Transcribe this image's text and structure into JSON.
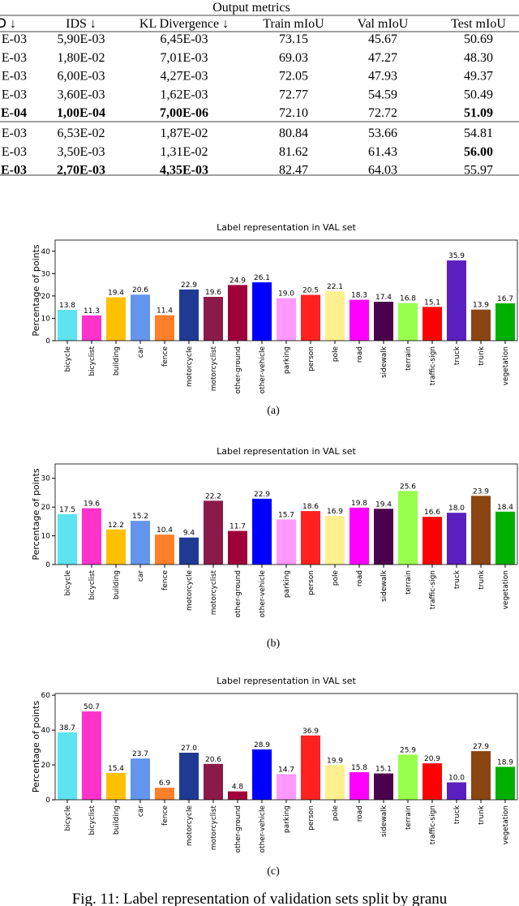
{
  "table": {
    "group_header": "Output metrics",
    "header": [
      "Ↄ ↓",
      "IDS ↓",
      "KL Divergence ↓",
      "Train mIoU",
      "Val mIoU",
      "Test mIoU"
    ],
    "rows": [
      [
        "E-03",
        "5,90E-03",
        "6,45E-03",
        "73.15",
        "45.67",
        "50.69"
      ],
      [
        "E-03",
        "1,80E-02",
        "7,01E-03",
        "69.03",
        "47.27",
        "48.30"
      ],
      [
        "E-03",
        "6,00E-03",
        "4,27E-03",
        "72.05",
        "47.93",
        "49.37"
      ],
      [
        "E-03",
        "3,60E-03",
        "1,62E-03",
        "72.77",
        "54.59",
        "50.49"
      ],
      [
        "E-04",
        "1,00E-04",
        "7,00E-06",
        "72.10",
        "72.72",
        "51.09"
      ],
      [
        "E-03",
        "6,53E-02",
        "1,87E-02",
        "80.84",
        "53.66",
        "54.81"
      ],
      [
        "E-03",
        "3,50E-03",
        "1,31E-02",
        "81.62",
        "61.43",
        "56.00"
      ],
      [
        "E-03",
        "2,70E-03",
        "4,35E-03",
        "82.47",
        "64.03",
        "55.97"
      ]
    ]
  },
  "chart_data": [
    {
      "type": "bar",
      "title": "Label representation in VAL set",
      "y_label": "Percentage of points",
      "categories": [
        "bicycle",
        "bicyclist",
        "building",
        "car",
        "fence",
        "motorcycle",
        "motorcyclist",
        "other-ground",
        "other-vehicle",
        "parking",
        "person",
        "pole",
        "road",
        "sidewalk",
        "terrain",
        "traffic-sign",
        "truck",
        "trunk",
        "vegetation"
      ],
      "values": [
        13.8,
        11.3,
        19.4,
        20.6,
        11.4,
        22.9,
        19.6,
        24.9,
        26.1,
        19.0,
        20.5,
        22.1,
        18.3,
        17.4,
        16.8,
        15.1,
        35.9,
        13.9,
        16.7
      ],
      "value_labels": [
        "13.8",
        "11.3",
        "19.4",
        "20.6",
        "11.4",
        "22.9",
        "19.6",
        "24.9",
        "26.1",
        "19.0",
        "20.5",
        "22.1",
        "18.3",
        "17.4",
        "16.8",
        "15.1",
        "35.9",
        "13.9",
        "16.7"
      ],
      "colors": [
        "#5ee3f0",
        "#ff33cc",
        "#ffc000",
        "#6495ed",
        "#ff7f2a",
        "#1f3a93",
        "#8b1a4a",
        "#a0003a",
        "#0000ff",
        "#ff99ff",
        "#ff2020",
        "#fff08f",
        "#ff00ff",
        "#4b004b",
        "#99ff4d",
        "#ff0000",
        "#5a1fbf",
        "#8b4513",
        "#00b000"
      ],
      "ylim": [
        0,
        45
      ],
      "yticks": [
        0,
        10,
        20,
        30,
        40
      ]
    },
    {
      "type": "bar",
      "title": "Label representation in VAL set",
      "y_label": "Percentage of points",
      "categories": [
        "bicycle",
        "bicyclist",
        "building",
        "car",
        "fence",
        "motorcycle",
        "motorcyclist",
        "other-ground",
        "other-vehicle",
        "parking",
        "person",
        "pole",
        "road",
        "sidewalk",
        "terrain",
        "traffic-sign",
        "truck",
        "trunk",
        "vegetation"
      ],
      "values": [
        17.5,
        19.6,
        12.2,
        15.2,
        10.4,
        9.4,
        22.2,
        11.7,
        22.9,
        15.7,
        18.6,
        16.9,
        19.8,
        19.4,
        25.6,
        16.6,
        18.0,
        23.9,
        18.4
      ],
      "value_labels": [
        "17.5",
        "19.6",
        "12.2",
        "15.2",
        "10.4",
        "9.4",
        "22.2",
        "11.7",
        "22.9",
        "15.7",
        "18.6",
        "16.9",
        "19.8",
        "19.4",
        "25.6",
        "16.6",
        "18.0",
        "23.9",
        "18.4"
      ],
      "colors": [
        "#5ee3f0",
        "#ff33cc",
        "#ffc000",
        "#6495ed",
        "#ff7f2a",
        "#1f3a93",
        "#8b1a4a",
        "#a0003a",
        "#0000ff",
        "#ff99ff",
        "#ff2020",
        "#fff08f",
        "#ff00ff",
        "#4b004b",
        "#99ff4d",
        "#ff0000",
        "#5a1fbf",
        "#8b4513",
        "#00b000"
      ],
      "ylim": [
        0,
        35
      ],
      "yticks": [
        0,
        10,
        20,
        30
      ]
    },
    {
      "type": "bar",
      "title": "Label representation in VAL set",
      "y_label": "Percentage of points",
      "categories": [
        "bicycle",
        "bicyclist",
        "building",
        "car",
        "fence",
        "motorcycle",
        "motorcyclist",
        "other-ground",
        "other-vehicle",
        "parking",
        "person",
        "pole",
        "road",
        "sidewalk",
        "terrain",
        "traffic-sign",
        "truck",
        "trunk",
        "vegetation"
      ],
      "values": [
        38.7,
        50.7,
        15.4,
        23.7,
        6.9,
        27.0,
        20.6,
        4.8,
        28.9,
        14.7,
        36.9,
        19.9,
        15.8,
        15.1,
        25.9,
        20.9,
        10.0,
        27.9,
        18.9
      ],
      "value_labels": [
        "38.7",
        "50.7",
        "15.4",
        "23.7",
        "6.9",
        "27.0",
        "20.6",
        "4.8",
        "28.9",
        "14.7",
        "36.9",
        "19.9",
        "15.8",
        "15.1",
        "25.9",
        "20.9",
        "10.0",
        "27.9",
        "18.9"
      ],
      "colors": [
        "#5ee3f0",
        "#ff33cc",
        "#ffc000",
        "#6495ed",
        "#ff7f2a",
        "#1f3a93",
        "#8b1a4a",
        "#a0003a",
        "#0000ff",
        "#ff99ff",
        "#ff2020",
        "#fff08f",
        "#ff00ff",
        "#4b004b",
        "#99ff4d",
        "#ff0000",
        "#5a1fbf",
        "#8b4513",
        "#00b000"
      ],
      "ylim": [
        0,
        61
      ],
      "yticks": [
        0,
        20,
        40,
        60
      ]
    }
  ],
  "subcaptions": [
    "(a)",
    "(b)",
    "(c)"
  ],
  "figure_caption": "Fig. 11: Label representation of validation sets split by granu"
}
